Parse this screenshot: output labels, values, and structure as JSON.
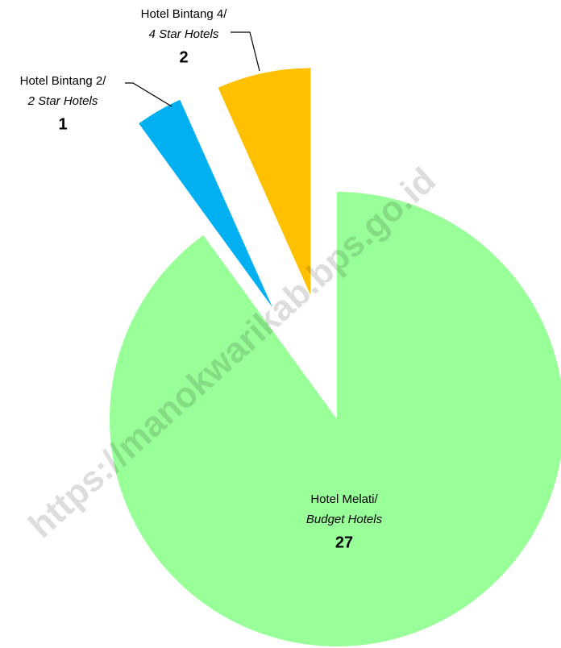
{
  "chart_data": {
    "type": "pie",
    "categories": [
      "Hotel Melati/",
      "Hotel Bintang 2/",
      "Hotel Bintang 4/"
    ],
    "categories_en": [
      "Budget Hotels",
      "2 Star Hotels",
      "4 Star Hotels"
    ],
    "values": [
      27,
      1,
      2
    ],
    "colors": [
      "#99ff99",
      "#00b0f0",
      "#ffc000"
    ],
    "watermark": "https://manokwarikab.bps.go.id"
  }
}
